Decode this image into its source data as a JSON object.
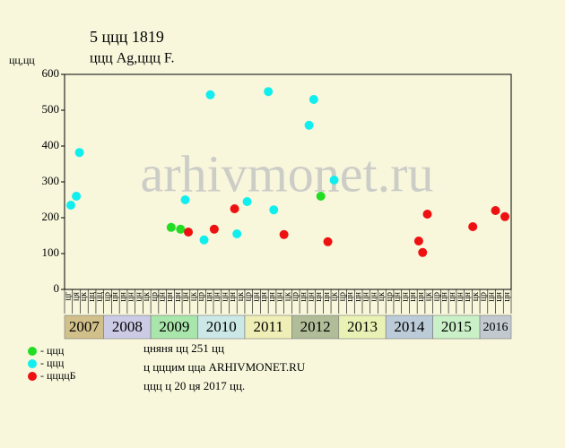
{
  "chart_data": {
    "type": "scatter",
    "title": "5 ццц 1819",
    "subtitle": "ццц Ag,ццц F.",
    "y_label": "цц,цц",
    "watermark": "arhivmonet.ru",
    "xlim": [
      0,
      57
    ],
    "ylim": [
      0,
      600
    ],
    "yticks": [
      0,
      100,
      200,
      300,
      400,
      500,
      600
    ],
    "column_labels": [
      "цг",
      "ця",
      "цк",
      "цц",
      "цц",
      "цр",
      "цн",
      "цн",
      "цн",
      "цн",
      "цк",
      "цр",
      "цн",
      "цн",
      "цн",
      "цн",
      "цк",
      "цр",
      "цн",
      "цн",
      "цн",
      "цн",
      "цк",
      "цр",
      "цн",
      "цн",
      "цн",
      "цн",
      "цк",
      "цр",
      "цн",
      "цн",
      "цн",
      "цн",
      "цк",
      "цр",
      "цн",
      "цн",
      "цн",
      "цн",
      "цк",
      "цр",
      "цн",
      "цн",
      "цн",
      "цн",
      "цк",
      "цр",
      "цн",
      "цн",
      "цн",
      "цн",
      "цк",
      "цр",
      "цн",
      "цн",
      "цн"
    ],
    "years": [
      {
        "label": "2007",
        "columns": 5,
        "color": "#d2c08a"
      },
      {
        "label": "2008",
        "columns": 6,
        "color": "#cbcbe6"
      },
      {
        "label": "2009",
        "columns": 6,
        "color": "#a9e6ab"
      },
      {
        "label": "2010",
        "columns": 6,
        "color": "#cbe8e6"
      },
      {
        "label": "2011",
        "columns": 6,
        "color": "#eeeeb6"
      },
      {
        "label": "2012",
        "columns": 6,
        "color": "#b0bd98"
      },
      {
        "label": "2013",
        "columns": 6,
        "color": "#e9f2b4"
      },
      {
        "label": "2014",
        "columns": 6,
        "color": "#bccbd8"
      },
      {
        "label": "2015",
        "columns": 6,
        "color": "#c9f0c6"
      },
      {
        "label": "2016",
        "columns": 4,
        "color": "#c2c9cf"
      }
    ],
    "series": [
      {
        "name": "- ццц",
        "color": "#22dd22",
        "x": [
          13.6,
          14.8,
          32.7
        ],
        "values": [
          173,
          168,
          260
        ]
      },
      {
        "name": "- ццц",
        "color": "#11eeee",
        "x": [
          0.8,
          1.5,
          1.9,
          15.4,
          17.8,
          18.6,
          22.0,
          23.3,
          26.0,
          26.7,
          31.2,
          31.8,
          34.4
        ],
        "values": [
          235,
          260,
          382,
          250,
          138,
          543,
          155,
          245,
          552,
          222,
          458,
          530,
          305
        ]
      },
      {
        "name": "- ццццБ",
        "color": "#ee1111",
        "x": [
          15.8,
          19.1,
          21.7,
          28.0,
          33.6,
          45.2,
          45.7,
          46.3,
          52.1,
          55.0,
          56.2
        ],
        "values": [
          160,
          168,
          225,
          153,
          133,
          135,
          103,
          210,
          175,
          220,
          203
        ]
      }
    ],
    "notes": [
      "цняня цц 251 цц",
      "ц цццим цца ARHIVMONET.RU",
      "ццц ц 20 ця 2017 цц."
    ]
  }
}
